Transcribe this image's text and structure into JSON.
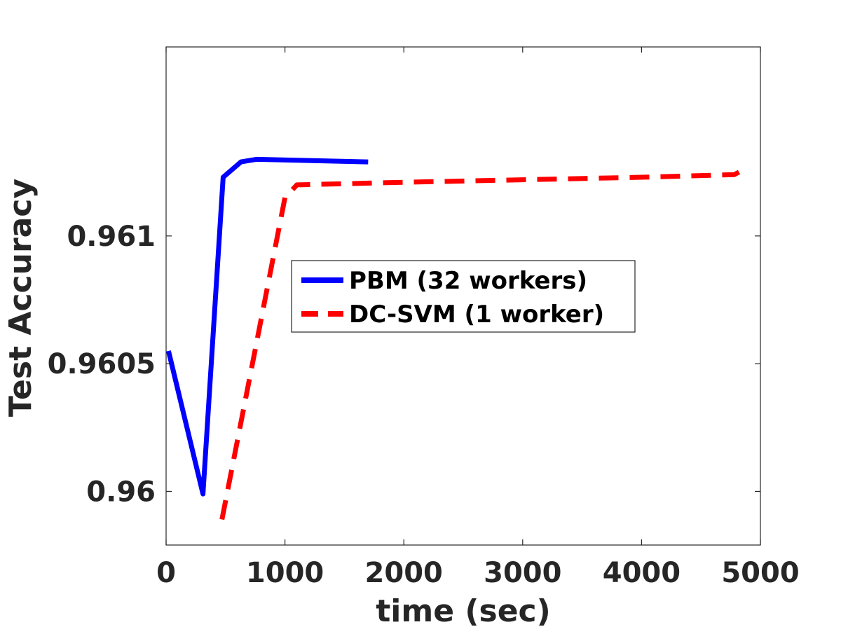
{
  "chart_data": {
    "type": "line",
    "title": "",
    "xlabel": "time (sec)",
    "ylabel": "Test Accuracy",
    "xlim": [
      0,
      5000
    ],
    "ylim": [
      0.95979,
      0.96174
    ],
    "xticks": [
      0,
      1000,
      2000,
      3000,
      4000,
      5000
    ],
    "xtick_labels": [
      "0",
      "1000",
      "2000",
      "3000",
      "4000",
      "5000"
    ],
    "yticks": [
      0.96,
      0.9605,
      0.961
    ],
    "ytick_labels": [
      "0.96",
      "0.9605",
      "0.961"
    ],
    "grid": false,
    "legend_position": "center",
    "series": [
      {
        "name": "PBM (32 workers)",
        "color": "#0000ff",
        "style": "solid",
        "x": [
          20,
          310,
          480,
          630,
          760,
          1700
        ],
        "y": [
          0.96055,
          0.95999,
          0.96123,
          0.96129,
          0.9613,
          0.96129
        ]
      },
      {
        "name": "DC-SVM (1 worker)",
        "color": "#ff0000",
        "style": "dashed",
        "x": [
          470,
          1000,
          1100,
          2000,
          3000,
          4000,
          4780,
          4820
        ],
        "y": [
          0.95989,
          0.96115,
          0.9612,
          0.96121,
          0.96122,
          0.96123,
          0.96124,
          0.96125
        ]
      }
    ]
  }
}
